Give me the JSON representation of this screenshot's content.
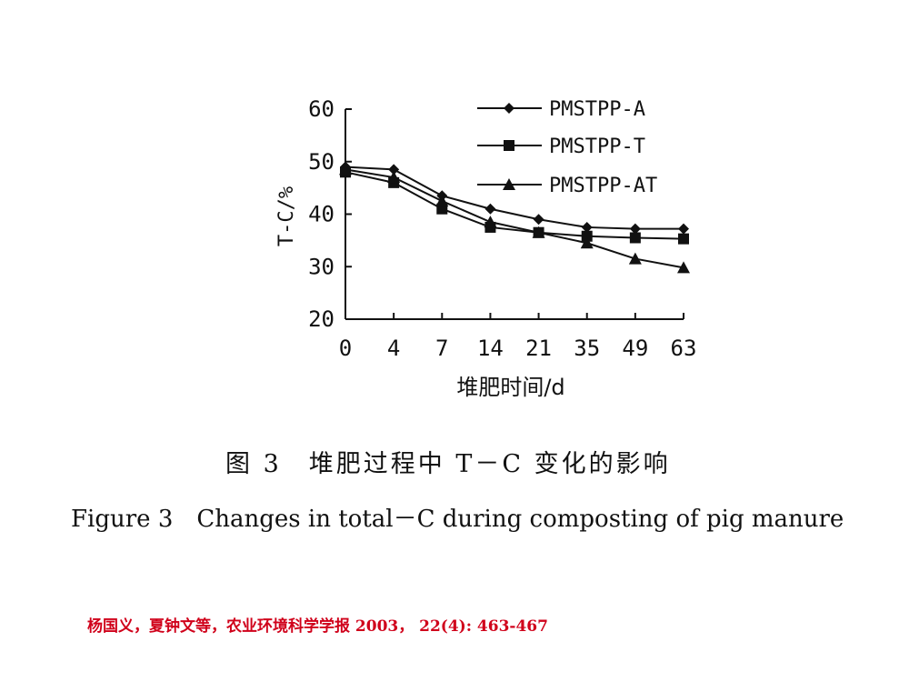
{
  "chart_data": {
    "type": "line",
    "categories": [
      "0",
      "4",
      "7",
      "14",
      "21",
      "35",
      "49",
      "63"
    ],
    "xlabel": "堆肥时间/d",
    "ylabel": "T-C/%",
    "ylim": [
      20,
      60
    ],
    "yticks": [
      "20",
      "30",
      "40",
      "50",
      "60"
    ],
    "grid": false,
    "legend_position": "top-right",
    "series": [
      {
        "name": "PMSTPP-A",
        "marker": "diamond",
        "values": [
          49,
          48.5,
          43.5,
          41,
          39,
          37.5,
          37.2,
          37.2
        ]
      },
      {
        "name": "PMSTPP-T",
        "marker": "square",
        "values": [
          48,
          46,
          41,
          37.5,
          36.5,
          35.8,
          35.5,
          35.3
        ]
      },
      {
        "name": "PMSTPP-AT",
        "marker": "triangle",
        "values": [
          48.5,
          47,
          42.5,
          38.5,
          36.5,
          34.5,
          31.5,
          29.8
        ]
      }
    ]
  },
  "caption": {
    "chinese": "图 3　堆肥过程中 T－C 变化的影响",
    "english": "Figure 3　Changes in total－C during composting of pig manure"
  },
  "source": {
    "text": "杨国义，夏钟文等，农业环境科学学报 2003， 22(4): 463-467",
    "color": "#d0021b"
  }
}
